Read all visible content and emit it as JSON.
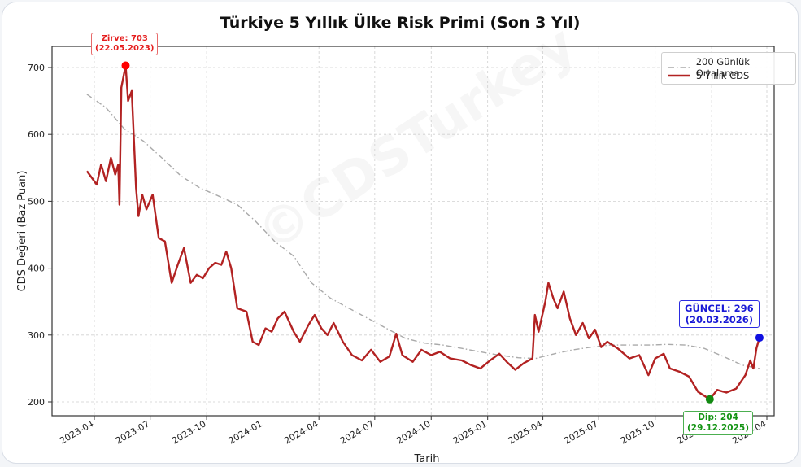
{
  "chart_data": {
    "type": "line",
    "title": "Türkiye 5 Yıllık Ülke Risk Primi (Son 3 Yıl)",
    "xlabel": "Tarih",
    "ylabel": "CDS Değeri (Baz Puan)",
    "ylim": [
      180,
      735
    ],
    "yticks": [
      200,
      300,
      400,
      500,
      600,
      700
    ],
    "xticks": [
      "2023-04",
      "2023-07",
      "2023-10",
      "2024-01",
      "2024-04",
      "2024-07",
      "2024-10",
      "2025-01",
      "2025-04",
      "2025-07",
      "2025-10",
      "2026-01",
      "2026-04"
    ],
    "grid": true,
    "legend": {
      "position": "upper right",
      "entries": [
        "200 Günlük Ortalama",
        "5 Yıllık CDS"
      ]
    },
    "series": [
      {
        "name": "5 Yıllık CDS",
        "color": "#b22222",
        "style": "solid",
        "points": [
          [
            "2023-03-20",
            545
          ],
          [
            "2023-03-28",
            535
          ],
          [
            "2023-04-05",
            525
          ],
          [
            "2023-04-12",
            555
          ],
          [
            "2023-04-20",
            530
          ],
          [
            "2023-04-28",
            565
          ],
          [
            "2023-05-05",
            540
          ],
          [
            "2023-05-10",
            555
          ],
          [
            "2023-05-12",
            495
          ],
          [
            "2023-05-15",
            670
          ],
          [
            "2023-05-22",
            703
          ],
          [
            "2023-05-26",
            650
          ],
          [
            "2023-06-01",
            665
          ],
          [
            "2023-06-08",
            520
          ],
          [
            "2023-06-12",
            478
          ],
          [
            "2023-06-18",
            510
          ],
          [
            "2023-06-25",
            488
          ],
          [
            "2023-07-05",
            510
          ],
          [
            "2023-07-15",
            445
          ],
          [
            "2023-07-25",
            440
          ],
          [
            "2023-08-05",
            378
          ],
          [
            "2023-08-15",
            405
          ],
          [
            "2023-08-25",
            430
          ],
          [
            "2023-09-05",
            378
          ],
          [
            "2023-09-15",
            390
          ],
          [
            "2023-09-25",
            385
          ],
          [
            "2023-10-05",
            400
          ],
          [
            "2023-10-15",
            408
          ],
          [
            "2023-10-25",
            405
          ],
          [
            "2023-11-02",
            425
          ],
          [
            "2023-11-10",
            400
          ],
          [
            "2023-11-20",
            340
          ],
          [
            "2023-12-05",
            335
          ],
          [
            "2023-12-15",
            290
          ],
          [
            "2023-12-25",
            285
          ],
          [
            "2024-01-05",
            310
          ],
          [
            "2024-01-15",
            305
          ],
          [
            "2024-01-25",
            325
          ],
          [
            "2024-02-05",
            335
          ],
          [
            "2024-02-20",
            305
          ],
          [
            "2024-03-01",
            290
          ],
          [
            "2024-03-15",
            315
          ],
          [
            "2024-03-25",
            330
          ],
          [
            "2024-04-05",
            310
          ],
          [
            "2024-04-15",
            300
          ],
          [
            "2024-04-25",
            318
          ],
          [
            "2024-05-10",
            290
          ],
          [
            "2024-05-25",
            270
          ],
          [
            "2024-06-10",
            262
          ],
          [
            "2024-06-25",
            278
          ],
          [
            "2024-07-10",
            260
          ],
          [
            "2024-07-25",
            268
          ],
          [
            "2024-08-05",
            302
          ],
          [
            "2024-08-15",
            270
          ],
          [
            "2024-09-01",
            260
          ],
          [
            "2024-09-15",
            278
          ],
          [
            "2024-10-01",
            270
          ],
          [
            "2024-10-15",
            275
          ],
          [
            "2024-11-01",
            265
          ],
          [
            "2024-11-20",
            262
          ],
          [
            "2024-12-05",
            255
          ],
          [
            "2024-12-20",
            250
          ],
          [
            "2025-01-05",
            262
          ],
          [
            "2025-01-20",
            272
          ],
          [
            "2025-02-01",
            260
          ],
          [
            "2025-02-15",
            248
          ],
          [
            "2025-03-01",
            258
          ],
          [
            "2025-03-15",
            265
          ],
          [
            "2025-03-19",
            330
          ],
          [
            "2025-03-25",
            305
          ],
          [
            "2025-04-05",
            350
          ],
          [
            "2025-04-10",
            378
          ],
          [
            "2025-04-18",
            355
          ],
          [
            "2025-04-25",
            340
          ],
          [
            "2025-05-05",
            365
          ],
          [
            "2025-05-15",
            325
          ],
          [
            "2025-05-25",
            300
          ],
          [
            "2025-06-05",
            318
          ],
          [
            "2025-06-15",
            295
          ],
          [
            "2025-06-25",
            308
          ],
          [
            "2025-07-05",
            282
          ],
          [
            "2025-07-15",
            290
          ],
          [
            "2025-08-01",
            280
          ],
          [
            "2025-08-20",
            265
          ],
          [
            "2025-09-05",
            270
          ],
          [
            "2025-09-20",
            240
          ],
          [
            "2025-10-01",
            265
          ],
          [
            "2025-10-15",
            272
          ],
          [
            "2025-10-25",
            250
          ],
          [
            "2025-11-10",
            245
          ],
          [
            "2025-11-25",
            238
          ],
          [
            "2025-12-10",
            215
          ],
          [
            "2025-12-29",
            204
          ],
          [
            "2026-01-10",
            218
          ],
          [
            "2026-01-25",
            214
          ],
          [
            "2026-02-10",
            220
          ],
          [
            "2026-02-25",
            240
          ],
          [
            "2026-03-05",
            262
          ],
          [
            "2026-03-10",
            250
          ],
          [
            "2026-03-15",
            280
          ],
          [
            "2026-03-20",
            296
          ]
        ]
      },
      {
        "name": "200 Günlük Ortalama",
        "color": "#aaaaaa",
        "style": "dashdot",
        "points": [
          [
            "2023-03-20",
            660
          ],
          [
            "2023-04-20",
            640
          ],
          [
            "2023-05-20",
            608
          ],
          [
            "2023-06-20",
            590
          ],
          [
            "2023-07-20",
            565
          ],
          [
            "2023-08-20",
            538
          ],
          [
            "2023-09-20",
            520
          ],
          [
            "2023-10-20",
            508
          ],
          [
            "2023-11-20",
            495
          ],
          [
            "2023-12-20",
            470
          ],
          [
            "2024-01-20",
            440
          ],
          [
            "2024-02-20",
            418
          ],
          [
            "2024-03-20",
            378
          ],
          [
            "2024-04-20",
            355
          ],
          [
            "2024-05-20",
            340
          ],
          [
            "2024-06-20",
            325
          ],
          [
            "2024-07-20",
            310
          ],
          [
            "2024-08-20",
            295
          ],
          [
            "2024-09-20",
            288
          ],
          [
            "2024-10-20",
            285
          ],
          [
            "2024-11-20",
            280
          ],
          [
            "2024-12-20",
            275
          ],
          [
            "2025-01-20",
            270
          ],
          [
            "2025-02-20",
            266
          ],
          [
            "2025-03-20",
            265
          ],
          [
            "2025-04-20",
            272
          ],
          [
            "2025-05-20",
            278
          ],
          [
            "2025-06-20",
            282
          ],
          [
            "2025-07-20",
            285
          ],
          [
            "2025-08-20",
            285
          ],
          [
            "2025-09-20",
            285
          ],
          [
            "2025-10-20",
            286
          ],
          [
            "2025-11-20",
            285
          ],
          [
            "2025-12-20",
            280
          ],
          [
            "2026-01-20",
            268
          ],
          [
            "2026-02-20",
            255
          ],
          [
            "2026-03-20",
            250
          ]
        ]
      }
    ],
    "annotations": [
      {
        "label": "Zirve: 703",
        "date": "(22.05.2023)",
        "value": 703,
        "color": "#e51e1e"
      },
      {
        "label": "GÜNCEL: 296",
        "date": "(20.03.2026)",
        "value": 296,
        "color": "#1a1ad6"
      },
      {
        "label": "Dip: 204",
        "date": "(29.12.2025)",
        "value": 204,
        "color": "#149414"
      }
    ]
  },
  "watermark": "©CDSTurkey"
}
